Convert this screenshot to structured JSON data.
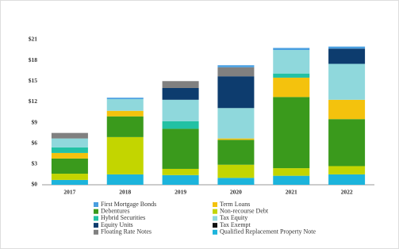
{
  "chart_data": {
    "type": "stacked_bar",
    "categories": [
      "2017",
      "2018",
      "2019",
      "2020",
      "2021",
      "2022"
    ],
    "ylim": [
      0,
      21
    ],
    "yticks": [
      {
        "value": 0,
        "label": "$0"
      },
      {
        "value": 3,
        "label": "$3"
      },
      {
        "value": 6,
        "label": "$6"
      },
      {
        "value": 9,
        "label": "$9"
      },
      {
        "value": 12,
        "label": "$12"
      },
      {
        "value": 15,
        "label": "$15"
      },
      {
        "value": 18,
        "label": "$18"
      },
      {
        "value": 21,
        "label": "$21"
      }
    ],
    "series": [
      {
        "name": "First Mortgage Bonds",
        "color": "#4a9fe0",
        "values": [
          0,
          0.2,
          0,
          0.3,
          0.3,
          0.3
        ]
      },
      {
        "name": "Term Loans",
        "color": "#f4c20d",
        "values": [
          0.8,
          0.8,
          0,
          0.2,
          2.8,
          2.8
        ]
      },
      {
        "name": "Debentures",
        "color": "#3a9a1c",
        "values": [
          2.2,
          3.0,
          5.8,
          3.6,
          10.3,
          6.8
        ]
      },
      {
        "name": "Non-recourse Debt",
        "color": "#c3d500",
        "values": [
          0.9,
          5.4,
          0.9,
          1.9,
          1.1,
          1.2
        ]
      },
      {
        "name": "Hybrid Securities",
        "color": "#22c1a4",
        "values": [
          0.8,
          0,
          1.1,
          0,
          0.6,
          0
        ]
      },
      {
        "name": "Tax Equity",
        "color": "#8fd8dc",
        "values": [
          1.3,
          1.7,
          3.1,
          4.4,
          3.4,
          5.2
        ]
      },
      {
        "name": "Equity Units",
        "color": "#0d3c6e",
        "values": [
          0,
          0,
          1.7,
          4.6,
          0,
          2.2
        ]
      },
      {
        "name": "Tax Exempt",
        "color": "#111111",
        "values": [
          0,
          0,
          0,
          0,
          0,
          0
        ]
      },
      {
        "name": "Floating Rate Notes",
        "color": "#808080",
        "values": [
          0.8,
          0,
          1.0,
          1.3,
          0,
          0
        ]
      },
      {
        "name": "Qualified Replacement Property Note",
        "color": "#1cb4dc",
        "values": [
          0.7,
          1.5,
          1.4,
          1.0,
          1.3,
          1.5
        ]
      }
    ]
  }
}
